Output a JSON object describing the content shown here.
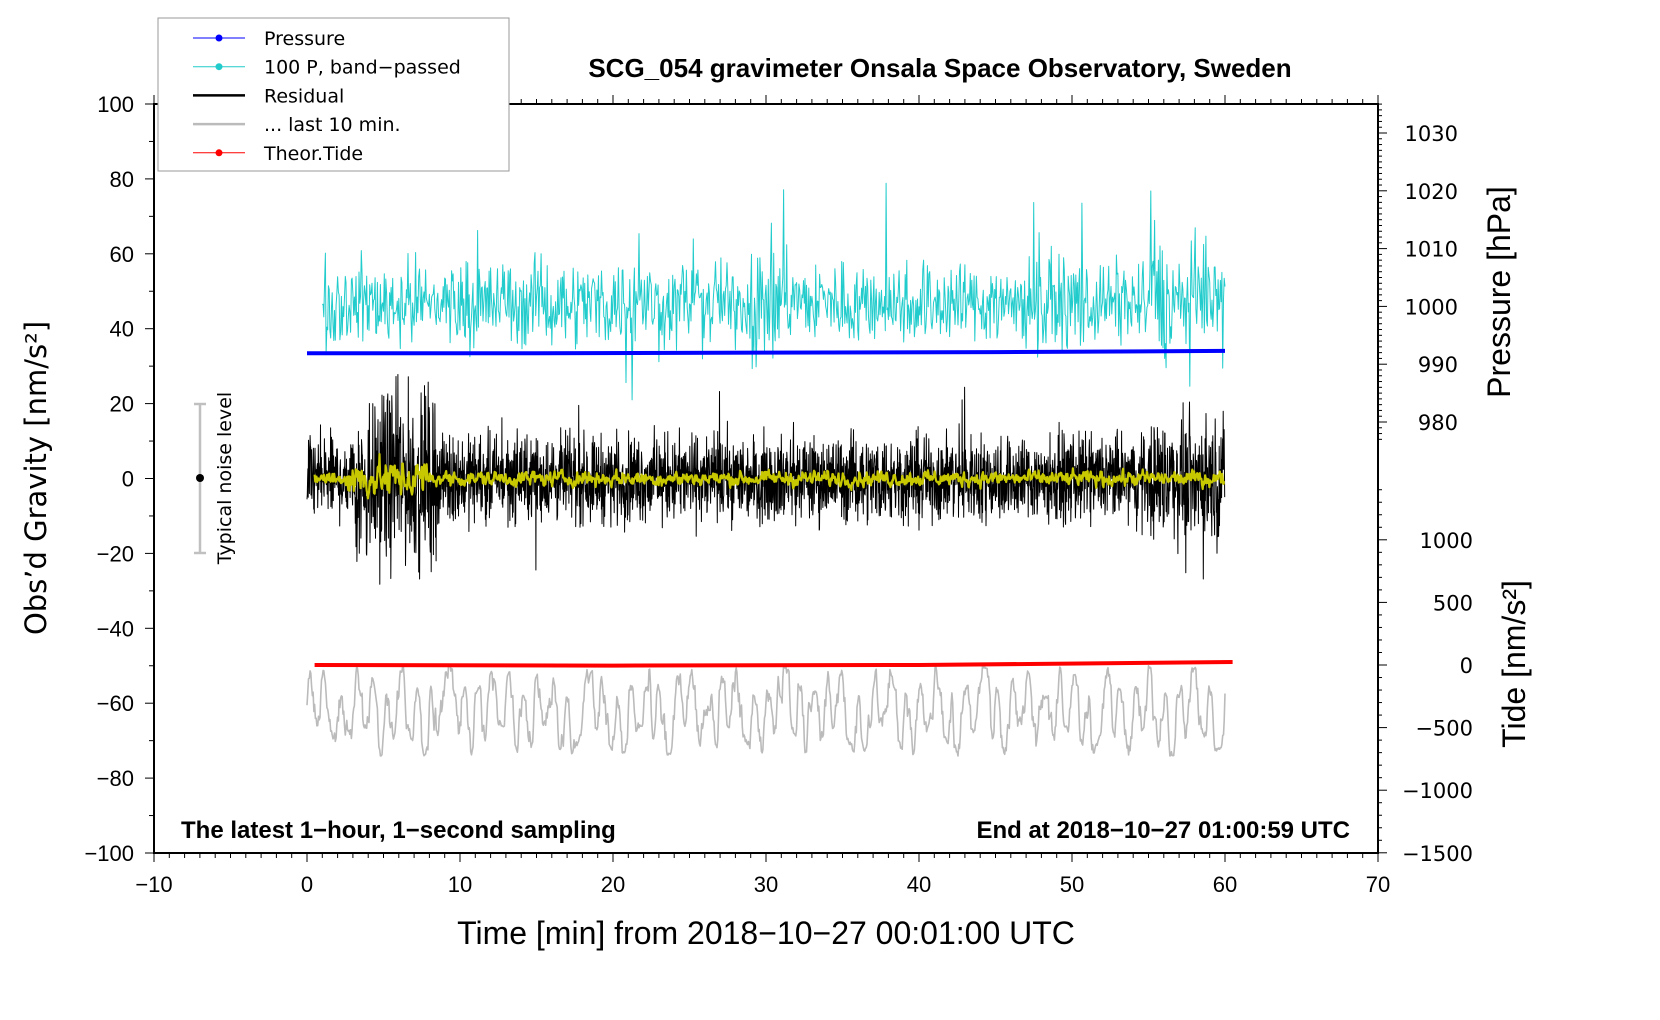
{
  "chart_data": {
    "type": "line",
    "title": "SCG_054 gravimeter Onsala Space Observatory, Sweden",
    "xlabel": "Time [min] from 2018−10−27 00:01:00 UTC",
    "ylabel_left": "Obs’d Gravity [nm/s²]",
    "ylabel_right_pressure": "Pressure [hPa]",
    "ylabel_right_tide": "Tide [nm/s²]",
    "xlim": [
      -10,
      70
    ],
    "ylim": [
      -100,
      100
    ],
    "pressure_lim": [
      980,
      1030
    ],
    "tide_lim": [
      -1500,
      1000
    ],
    "x_ticks": [
      "−10",
      "0",
      "10",
      "20",
      "30",
      "40",
      "50",
      "60",
      "70"
    ],
    "x_tick_values": [
      -10,
      0,
      10,
      20,
      30,
      40,
      50,
      60,
      70
    ],
    "y_ticks": [
      "100",
      "80",
      "60",
      "40",
      "20",
      "0",
      "−20",
      "−40",
      "−60",
      "−80",
      "−100"
    ],
    "y_tick_values": [
      100,
      80,
      60,
      40,
      20,
      0,
      -20,
      -40,
      -60,
      -80,
      -100
    ],
    "pressure_ticks": [
      "1030",
      "1020",
      "1010",
      "1000",
      "990",
      "980"
    ],
    "pressure_tick_values": [
      1030,
      1020,
      1010,
      1000,
      990,
      980
    ],
    "tide_ticks": [
      "1000",
      "500",
      "0",
      "−500",
      "−1000",
      "−1500"
    ],
    "tide_tick_values": [
      1000,
      500,
      0,
      -500,
      -1000,
      -1500
    ],
    "annotation_left": "The latest 1−hour, 1−second sampling",
    "annotation_right": "End at 2018−10−27 01:00:59 UTC",
    "noise_label": "Typical noise level",
    "noise_level": {
      "center": 0,
      "range": [
        -20,
        20
      ]
    },
    "legend": {
      "position": "top-left",
      "entries": [
        {
          "label": "Pressure",
          "color": "#0000ff",
          "marker": true
        },
        {
          "label": "100 P, band−passed",
          "color": "#22cccc",
          "marker": true
        },
        {
          "label": "Residual",
          "color": "#000000",
          "marker": false
        },
        {
          "label": "... last 10 min.",
          "color": "#bbbbbb",
          "marker": false
        },
        {
          "label": "Theor.Tide",
          "color": "#ff0000",
          "marker": true
        }
      ]
    },
    "series": [
      {
        "name": "Pressure",
        "axis": "pressure",
        "color": "#0000ff",
        "x": [
          0,
          15,
          30,
          45,
          60
        ],
        "values": [
          991.9,
          991.9,
          992.0,
          992.1,
          992.3
        ]
      },
      {
        "name": "100 P, band-passed",
        "axis": "left",
        "color": "#22cccc",
        "x_range": [
          1,
          60
        ],
        "mean": 47,
        "amplitude": 7,
        "spike_max": 82,
        "spike_min": 21
      },
      {
        "name": "Residual",
        "axis": "left",
        "color": "#000000",
        "x_range": [
          0,
          60
        ],
        "mean": 0,
        "amplitude": 7,
        "max": 34,
        "min": -33
      },
      {
        "name": "Residual smoothed",
        "axis": "left",
        "color": "#c8c800",
        "x_range": [
          0.5,
          60
        ],
        "mean": 0,
        "amplitude": 1.5
      },
      {
        "name": "... last 10 min.",
        "axis": "left",
        "color": "#bbbbbb",
        "x_range": [
          0,
          60
        ],
        "mean": -62,
        "amplitude": 9,
        "max": -43,
        "min": -78
      },
      {
        "name": "Theor.Tide",
        "axis": "tide",
        "color": "#ff0000",
        "x": [
          0.5,
          20,
          40,
          60.5
        ],
        "values": [
          0,
          -5,
          0,
          24
        ]
      }
    ]
  }
}
